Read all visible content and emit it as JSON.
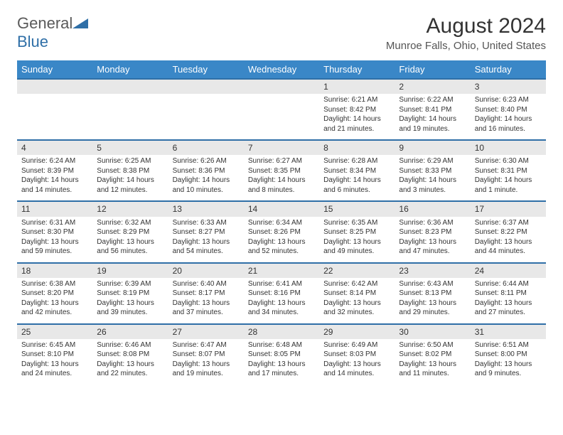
{
  "logo": {
    "general": "General",
    "blue": "Blue"
  },
  "title": "August 2024",
  "location": "Munroe Falls, Ohio, United States",
  "colors": {
    "header_bg": "#3a87c7",
    "header_text": "#ffffff",
    "daynum_bg": "#e8e8e8",
    "border": "#2f6fa7",
    "text": "#333333",
    "background": "#ffffff"
  },
  "weekdays": [
    "Sunday",
    "Monday",
    "Tuesday",
    "Wednesday",
    "Thursday",
    "Friday",
    "Saturday"
  ],
  "weeks": [
    [
      null,
      null,
      null,
      null,
      {
        "n": "1",
        "sr": "6:21 AM",
        "ss": "8:42 PM",
        "dl": "14 hours and 21 minutes."
      },
      {
        "n": "2",
        "sr": "6:22 AM",
        "ss": "8:41 PM",
        "dl": "14 hours and 19 minutes."
      },
      {
        "n": "3",
        "sr": "6:23 AM",
        "ss": "8:40 PM",
        "dl": "14 hours and 16 minutes."
      }
    ],
    [
      {
        "n": "4",
        "sr": "6:24 AM",
        "ss": "8:39 PM",
        "dl": "14 hours and 14 minutes."
      },
      {
        "n": "5",
        "sr": "6:25 AM",
        "ss": "8:38 PM",
        "dl": "14 hours and 12 minutes."
      },
      {
        "n": "6",
        "sr": "6:26 AM",
        "ss": "8:36 PM",
        "dl": "14 hours and 10 minutes."
      },
      {
        "n": "7",
        "sr": "6:27 AM",
        "ss": "8:35 PM",
        "dl": "14 hours and 8 minutes."
      },
      {
        "n": "8",
        "sr": "6:28 AM",
        "ss": "8:34 PM",
        "dl": "14 hours and 6 minutes."
      },
      {
        "n": "9",
        "sr": "6:29 AM",
        "ss": "8:33 PM",
        "dl": "14 hours and 3 minutes."
      },
      {
        "n": "10",
        "sr": "6:30 AM",
        "ss": "8:31 PM",
        "dl": "14 hours and 1 minute."
      }
    ],
    [
      {
        "n": "11",
        "sr": "6:31 AM",
        "ss": "8:30 PM",
        "dl": "13 hours and 59 minutes."
      },
      {
        "n": "12",
        "sr": "6:32 AM",
        "ss": "8:29 PM",
        "dl": "13 hours and 56 minutes."
      },
      {
        "n": "13",
        "sr": "6:33 AM",
        "ss": "8:27 PM",
        "dl": "13 hours and 54 minutes."
      },
      {
        "n": "14",
        "sr": "6:34 AM",
        "ss": "8:26 PM",
        "dl": "13 hours and 52 minutes."
      },
      {
        "n": "15",
        "sr": "6:35 AM",
        "ss": "8:25 PM",
        "dl": "13 hours and 49 minutes."
      },
      {
        "n": "16",
        "sr": "6:36 AM",
        "ss": "8:23 PM",
        "dl": "13 hours and 47 minutes."
      },
      {
        "n": "17",
        "sr": "6:37 AM",
        "ss": "8:22 PM",
        "dl": "13 hours and 44 minutes."
      }
    ],
    [
      {
        "n": "18",
        "sr": "6:38 AM",
        "ss": "8:20 PM",
        "dl": "13 hours and 42 minutes."
      },
      {
        "n": "19",
        "sr": "6:39 AM",
        "ss": "8:19 PM",
        "dl": "13 hours and 39 minutes."
      },
      {
        "n": "20",
        "sr": "6:40 AM",
        "ss": "8:17 PM",
        "dl": "13 hours and 37 minutes."
      },
      {
        "n": "21",
        "sr": "6:41 AM",
        "ss": "8:16 PM",
        "dl": "13 hours and 34 minutes."
      },
      {
        "n": "22",
        "sr": "6:42 AM",
        "ss": "8:14 PM",
        "dl": "13 hours and 32 minutes."
      },
      {
        "n": "23",
        "sr": "6:43 AM",
        "ss": "8:13 PM",
        "dl": "13 hours and 29 minutes."
      },
      {
        "n": "24",
        "sr": "6:44 AM",
        "ss": "8:11 PM",
        "dl": "13 hours and 27 minutes."
      }
    ],
    [
      {
        "n": "25",
        "sr": "6:45 AM",
        "ss": "8:10 PM",
        "dl": "13 hours and 24 minutes."
      },
      {
        "n": "26",
        "sr": "6:46 AM",
        "ss": "8:08 PM",
        "dl": "13 hours and 22 minutes."
      },
      {
        "n": "27",
        "sr": "6:47 AM",
        "ss": "8:07 PM",
        "dl": "13 hours and 19 minutes."
      },
      {
        "n": "28",
        "sr": "6:48 AM",
        "ss": "8:05 PM",
        "dl": "13 hours and 17 minutes."
      },
      {
        "n": "29",
        "sr": "6:49 AM",
        "ss": "8:03 PM",
        "dl": "13 hours and 14 minutes."
      },
      {
        "n": "30",
        "sr": "6:50 AM",
        "ss": "8:02 PM",
        "dl": "13 hours and 11 minutes."
      },
      {
        "n": "31",
        "sr": "6:51 AM",
        "ss": "8:00 PM",
        "dl": "13 hours and 9 minutes."
      }
    ]
  ],
  "labels": {
    "sunrise": "Sunrise:",
    "sunset": "Sunset:",
    "daylight": "Daylight:"
  }
}
